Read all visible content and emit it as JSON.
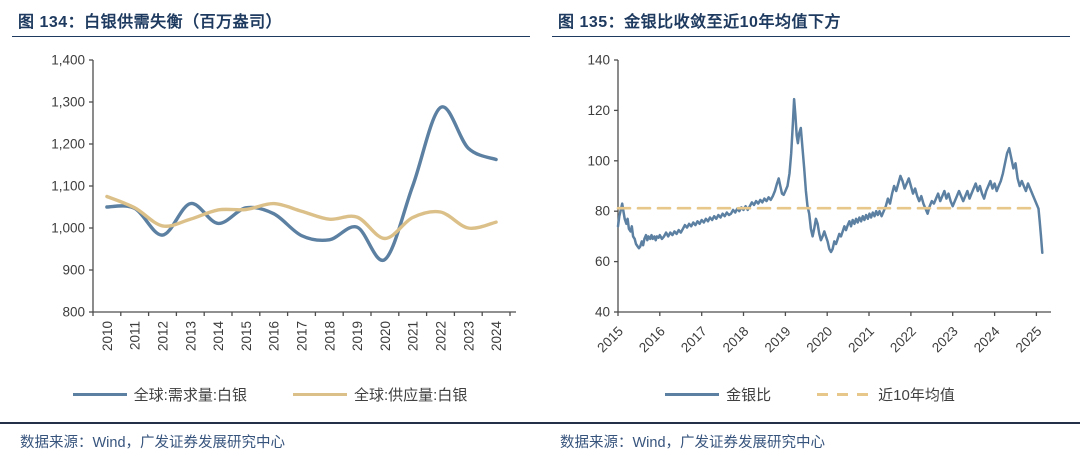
{
  "page": {
    "source_note": "数据来源：Wind，广发证券发展研究中心"
  },
  "colors": {
    "title_navy": "#1e3a5f",
    "footer_navy": "#37547d",
    "separator": "#233047",
    "axis": "#4d4d4d",
    "blue_line": "#5c80a1",
    "tan_line": "#dcc089",
    "dash_line": "#e7c88a"
  },
  "chart_data": [
    {
      "type": "line",
      "title": "图 134：白银供需失衡（百万盎司）",
      "xlabel": "",
      "ylabel": "",
      "unit": "百万盎司",
      "grid": false,
      "legend_position": "bottom",
      "categories": [
        "2010",
        "2011",
        "2012",
        "2013",
        "2014",
        "2015",
        "2016",
        "2017",
        "2018",
        "2019",
        "2020",
        "2021",
        "2022",
        "2023",
        "2024"
      ],
      "ylim": [
        800,
        1400
      ],
      "ytick_values": [
        800,
        900,
        1000,
        1100,
        1200,
        1300,
        1400
      ],
      "yticks": [
        "800",
        "900",
        "1,000",
        "1,100",
        "1,200",
        "1,300",
        "1,400"
      ],
      "series": [
        {
          "name": "全球:需求量:白银",
          "color": "#5c80a1",
          "smooth": true,
          "width": 3.4,
          "values": [
            1050,
            1047,
            983,
            1058,
            1011,
            1048,
            1034,
            982,
            972,
            1002,
            925,
            1100,
            1287,
            1190,
            1163
          ]
        },
        {
          "name": "全球:供应量:白银",
          "color": "#dcc089",
          "smooth": true,
          "width": 3.4,
          "values": [
            1075,
            1048,
            1005,
            1021,
            1043,
            1044,
            1058,
            1040,
            1021,
            1026,
            975,
            1025,
            1038,
            1000,
            1014
          ]
        }
      ]
    },
    {
      "type": "line",
      "title": "图 135：金银比收敛至近10年均值下方",
      "xlabel": "",
      "ylabel": "",
      "grid": false,
      "legend_position": "bottom",
      "xlim": [
        2015,
        2025.2
      ],
      "xticks": [
        2015,
        2016,
        2017,
        2018,
        2019,
        2020,
        2021,
        2022,
        2023,
        2024,
        2025
      ],
      "ylim": [
        40,
        140
      ],
      "ytick_values": [
        40,
        60,
        80,
        100,
        120,
        140
      ],
      "yticks": [
        "40",
        "60",
        "80",
        "100",
        "120",
        "140"
      ],
      "series": [
        {
          "name": "金银比",
          "color": "#5c80a1",
          "width": 2.5,
          "points": [
            [
              2015.0,
              74
            ],
            [
              2015.03,
              78
            ],
            [
              2015.06,
              80
            ],
            [
              2015.1,
              83
            ],
            [
              2015.13,
              80
            ],
            [
              2015.16,
              77
            ],
            [
              2015.2,
              75
            ],
            [
              2015.23,
              77
            ],
            [
              2015.26,
              73
            ],
            [
              2015.3,
              72
            ],
            [
              2015.33,
              74
            ],
            [
              2015.36,
              70
            ],
            [
              2015.4,
              69
            ],
            [
              2015.43,
              67
            ],
            [
              2015.47,
              66
            ],
            [
              2015.5,
              65.3
            ],
            [
              2015.53,
              66
            ],
            [
              2015.57,
              68
            ],
            [
              2015.6,
              66.5
            ],
            [
              2015.63,
              69
            ],
            [
              2015.67,
              70.5
            ],
            [
              2015.7,
              68.5
            ],
            [
              2015.73,
              70
            ],
            [
              2015.77,
              69
            ],
            [
              2015.8,
              70.5
            ],
            [
              2015.83,
              69
            ],
            [
              2015.87,
              70
            ],
            [
              2015.9,
              68.5
            ],
            [
              2015.93,
              70
            ],
            [
              2015.97,
              69.5
            ],
            [
              2016.0,
              70.5
            ],
            [
              2016.05,
              69
            ],
            [
              2016.1,
              70
            ],
            [
              2016.15,
              71.5
            ],
            [
              2016.2,
              70
            ],
            [
              2016.25,
              71.5
            ],
            [
              2016.3,
              70.5
            ],
            [
              2016.35,
              72
            ],
            [
              2016.4,
              71
            ],
            [
              2016.45,
              72.5
            ],
            [
              2016.5,
              71.5
            ],
            [
              2016.55,
              73
            ],
            [
              2016.6,
              74.5
            ],
            [
              2016.65,
              73.5
            ],
            [
              2016.7,
              75
            ],
            [
              2016.75,
              74
            ],
            [
              2016.8,
              75.5
            ],
            [
              2016.85,
              74.5
            ],
            [
              2016.9,
              76
            ],
            [
              2016.95,
              75
            ],
            [
              2017.0,
              76.5
            ],
            [
              2017.05,
              75.5
            ],
            [
              2017.1,
              77
            ],
            [
              2017.15,
              76
            ],
            [
              2017.2,
              77.5
            ],
            [
              2017.25,
              76.5
            ],
            [
              2017.3,
              78
            ],
            [
              2017.35,
              77
            ],
            [
              2017.4,
              78.5
            ],
            [
              2017.45,
              77.5
            ],
            [
              2017.5,
              79
            ],
            [
              2017.55,
              78
            ],
            [
              2017.6,
              79.5
            ],
            [
              2017.65,
              78.5
            ],
            [
              2017.7,
              79
            ],
            [
              2017.75,
              80.5
            ],
            [
              2017.8,
              79.5
            ],
            [
              2017.85,
              81
            ],
            [
              2017.9,
              80
            ],
            [
              2017.95,
              81.5
            ],
            [
              2018.0,
              80.5
            ],
            [
              2018.05,
              82
            ],
            [
              2018.1,
              80.5
            ],
            [
              2018.15,
              82
            ],
            [
              2018.2,
              83.5
            ],
            [
              2018.25,
              82.5
            ],
            [
              2018.3,
              84
            ],
            [
              2018.35,
              83
            ],
            [
              2018.4,
              84.5
            ],
            [
              2018.45,
              83.5
            ],
            [
              2018.5,
              85
            ],
            [
              2018.55,
              84
            ],
            [
              2018.6,
              85.5
            ],
            [
              2018.65,
              84.5
            ],
            [
              2018.7,
              86
            ],
            [
              2018.75,
              88
            ],
            [
              2018.8,
              91
            ],
            [
              2018.84,
              93
            ],
            [
              2018.88,
              90
            ],
            [
              2018.92,
              87
            ],
            [
              2018.96,
              86.5
            ],
            [
              2019.0,
              88
            ],
            [
              2019.05,
              90
            ],
            [
              2019.1,
              95
            ],
            [
              2019.14,
              103
            ],
            [
              2019.18,
              115
            ],
            [
              2019.21,
              124.5
            ],
            [
              2019.24,
              118
            ],
            [
              2019.27,
              110
            ],
            [
              2019.3,
              107
            ],
            [
              2019.33,
              111
            ],
            [
              2019.37,
              113
            ],
            [
              2019.41,
              105
            ],
            [
              2019.45,
              97
            ],
            [
              2019.49,
              88
            ],
            [
              2019.53,
              82
            ],
            [
              2019.57,
              79
            ],
            [
              2019.61,
              73
            ],
            [
              2019.65,
              70
            ],
            [
              2019.69,
              73
            ],
            [
              2019.73,
              77
            ],
            [
              2019.77,
              75
            ],
            [
              2019.81,
              71
            ],
            [
              2019.85,
              68.5
            ],
            [
              2019.89,
              70
            ],
            [
              2019.93,
              72
            ],
            [
              2019.97,
              70
            ],
            [
              2020.01,
              68
            ],
            [
              2020.05,
              65
            ],
            [
              2020.09,
              63.8
            ],
            [
              2020.13,
              65
            ],
            [
              2020.17,
              68
            ],
            [
              2020.21,
              67
            ],
            [
              2020.25,
              69
            ],
            [
              2020.29,
              71
            ],
            [
              2020.33,
              70
            ],
            [
              2020.37,
              72
            ],
            [
              2020.41,
              74
            ],
            [
              2020.45,
              72.5
            ],
            [
              2020.49,
              74.5
            ],
            [
              2020.53,
              76
            ],
            [
              2020.57,
              74
            ],
            [
              2020.61,
              76.5
            ],
            [
              2020.65,
              75
            ],
            [
              2020.69,
              77
            ],
            [
              2020.73,
              75.5
            ],
            [
              2020.77,
              77.5
            ],
            [
              2020.81,
              76
            ],
            [
              2020.85,
              78
            ],
            [
              2020.89,
              76.5
            ],
            [
              2020.93,
              78.5
            ],
            [
              2020.97,
              77
            ],
            [
              2021.01,
              79
            ],
            [
              2021.05,
              77.5
            ],
            [
              2021.09,
              79.5
            ],
            [
              2021.13,
              78
            ],
            [
              2021.17,
              80
            ],
            [
              2021.21,
              78.5
            ],
            [
              2021.25,
              80
            ],
            [
              2021.3,
              78
            ],
            [
              2021.35,
              80
            ],
            [
              2021.4,
              82
            ],
            [
              2021.45,
              85
            ],
            [
              2021.5,
              83
            ],
            [
              2021.55,
              87
            ],
            [
              2021.6,
              90
            ],
            [
              2021.65,
              88
            ],
            [
              2021.7,
              91
            ],
            [
              2021.75,
              94
            ],
            [
              2021.8,
              92
            ],
            [
              2021.85,
              89
            ],
            [
              2021.9,
              91
            ],
            [
              2021.95,
              93
            ],
            [
              2022.0,
              90
            ],
            [
              2022.05,
              87
            ],
            [
              2022.1,
              89
            ],
            [
              2022.15,
              86
            ],
            [
              2022.2,
              84
            ],
            [
              2022.25,
              86
            ],
            [
              2022.3,
              83
            ],
            [
              2022.35,
              81
            ],
            [
              2022.4,
              79
            ],
            [
              2022.45,
              82
            ],
            [
              2022.5,
              84
            ],
            [
              2022.55,
              83
            ],
            [
              2022.6,
              85
            ],
            [
              2022.65,
              87
            ],
            [
              2022.7,
              84
            ],
            [
              2022.75,
              86
            ],
            [
              2022.8,
              88
            ],
            [
              2022.85,
              85
            ],
            [
              2022.9,
              87
            ],
            [
              2022.95,
              84
            ],
            [
              2023.0,
              82
            ],
            [
              2023.05,
              84
            ],
            [
              2023.1,
              86
            ],
            [
              2023.15,
              88
            ],
            [
              2023.2,
              86
            ],
            [
              2023.25,
              84
            ],
            [
              2023.3,
              86
            ],
            [
              2023.35,
              88
            ],
            [
              2023.4,
              85
            ],
            [
              2023.45,
              87
            ],
            [
              2023.5,
              89
            ],
            [
              2023.55,
              91
            ],
            [
              2023.6,
              88
            ],
            [
              2023.65,
              90
            ],
            [
              2023.7,
              87
            ],
            [
              2023.75,
              85
            ],
            [
              2023.8,
              88
            ],
            [
              2023.85,
              90
            ],
            [
              2023.9,
              92
            ],
            [
              2023.95,
              89
            ],
            [
              2024.0,
              91
            ],
            [
              2024.05,
              88
            ],
            [
              2024.1,
              90
            ],
            [
              2024.15,
              92
            ],
            [
              2024.2,
              95
            ],
            [
              2024.25,
              99
            ],
            [
              2024.3,
              103
            ],
            [
              2024.35,
              105
            ],
            [
              2024.4,
              101
            ],
            [
              2024.45,
              97
            ],
            [
              2024.5,
              99
            ],
            [
              2024.55,
              93
            ],
            [
              2024.6,
              90
            ],
            [
              2024.65,
              92
            ],
            [
              2024.7,
              90
            ],
            [
              2024.75,
              88
            ],
            [
              2024.8,
              91
            ],
            [
              2024.85,
              89
            ],
            [
              2024.9,
              87
            ],
            [
              2024.95,
              85
            ],
            [
              2025.0,
              83
            ],
            [
              2025.05,
              81
            ],
            [
              2025.08,
              76
            ],
            [
              2025.11,
              70
            ],
            [
              2025.14,
              63.5
            ]
          ]
        },
        {
          "name": "近10年均值",
          "color": "#e7c88a",
          "dashed": true,
          "width": 2.6,
          "constant": 81.2,
          "x_range": [
            2015,
            2025.03
          ]
        }
      ]
    }
  ]
}
